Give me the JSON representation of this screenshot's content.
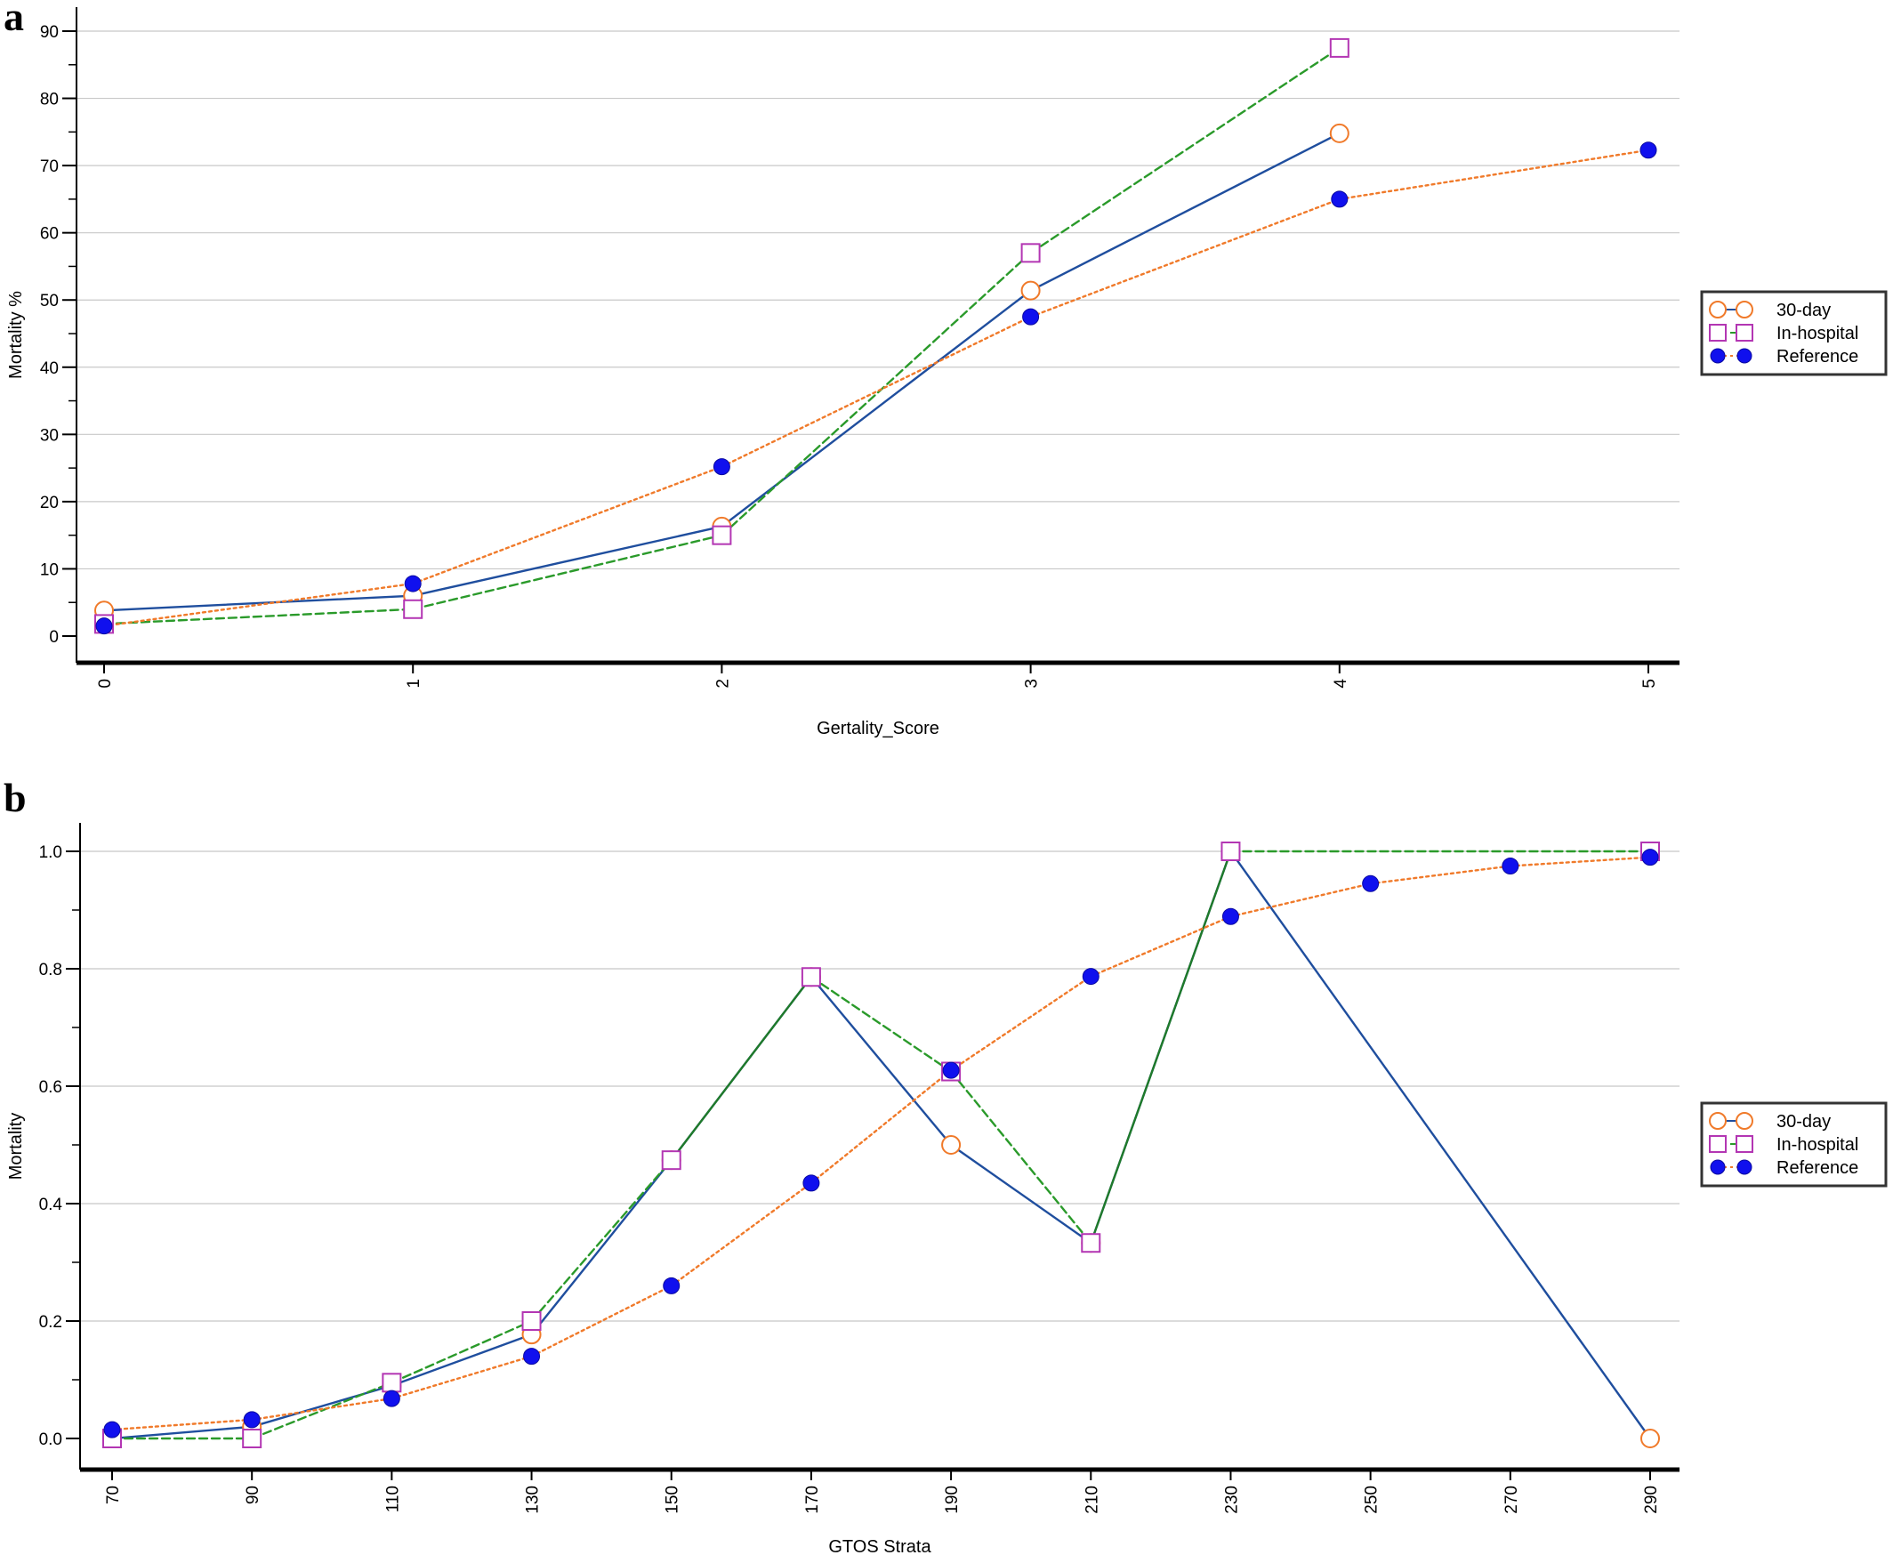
{
  "chart_data": [
    {
      "panel_label": "a",
      "type": "line",
      "xlabel": "Gertality_Score",
      "ylabel": "Mortality %",
      "xlim": [
        0,
        5
      ],
      "ylim": [
        0,
        90
      ],
      "x_ticks": [
        "0",
        "1",
        "2",
        "3",
        "4",
        "5"
      ],
      "y_ticks": [
        "0",
        "10",
        "20",
        "30",
        "40",
        "50",
        "60",
        "70",
        "80",
        "90"
      ],
      "grid": "horizontal",
      "legend_position": "right",
      "series": [
        {
          "name": "30-day",
          "line_color": "#1f4e9e",
          "line_style": "solid",
          "marker": "circle-open",
          "marker_color": "#f07a2a",
          "x": [
            0,
            1,
            2,
            3,
            4
          ],
          "y": [
            3.8,
            6,
            16.3,
            51.4,
            74.8
          ]
        },
        {
          "name": "In-hospital",
          "line_color": "#2a9a2a",
          "line_style": "dashed",
          "marker": "square-open",
          "marker_color": "#b336b3",
          "x": [
            0,
            1,
            2,
            3,
            4
          ],
          "y": [
            1.8,
            4,
            15,
            57,
            87.5
          ]
        },
        {
          "name": "Reference",
          "line_color": "#f07a2a",
          "line_style": "dotted",
          "marker": "circle-filled",
          "marker_color": "#1010ee",
          "x": [
            0,
            1,
            2,
            3,
            4,
            5
          ],
          "y": [
            1.5,
            7.8,
            25.2,
            47.5,
            65,
            72.3
          ]
        }
      ]
    },
    {
      "panel_label": "b",
      "type": "line",
      "xlabel": "GTOS Strata",
      "ylabel": "Mortality",
      "xlim": [
        70,
        290
      ],
      "ylim": [
        0,
        1
      ],
      "x_ticks": [
        "70",
        "90",
        "110",
        "130",
        "150",
        "170",
        "190",
        "210",
        "230",
        "250",
        "270",
        "290"
      ],
      "y_ticks": [
        "0.0",
        "0.2",
        "0.4",
        "0.6",
        "0.8",
        "1.0"
      ],
      "grid": "horizontal",
      "legend_position": "right",
      "series": [
        {
          "name": "30-day",
          "line_color": "#1f4e9e",
          "line_style": "solid",
          "marker": "circle-open",
          "marker_color": "#f07a2a",
          "x": [
            70,
            90,
            110,
            130,
            150,
            170,
            190,
            210,
            230,
            290
          ],
          "y": [
            0.0,
            0.02,
            0.09,
            0.177,
            0.474,
            0.786,
            0.5,
            0.333,
            1.0,
            0.0
          ]
        },
        {
          "name": "In-hospital",
          "line_color": "#2a9a2a",
          "line_style": "dashed",
          "solid_segments": [
            [
              150,
              170
            ],
            [
              210,
              230
            ]
          ],
          "solid_color": "#1f7a2a",
          "marker": "square-open",
          "marker_color": "#b336b3",
          "x": [
            70,
            90,
            110,
            130,
            150,
            170,
            190,
            210,
            230,
            290
          ],
          "y": [
            0.0,
            0.0,
            0.095,
            0.2,
            0.474,
            0.786,
            0.625,
            0.333,
            1.0,
            1.0
          ]
        },
        {
          "name": "Reference",
          "line_color": "#f07a2a",
          "line_style": "dotted",
          "marker": "circle-filled",
          "marker_color": "#1010ee",
          "x": [
            70,
            90,
            110,
            130,
            150,
            170,
            190,
            210,
            230,
            250,
            270,
            290
          ],
          "y": [
            0.015,
            0.032,
            0.068,
            0.14,
            0.26,
            0.435,
            0.627,
            0.787,
            0.889,
            0.945,
            0.975,
            0.99
          ]
        }
      ]
    }
  ]
}
